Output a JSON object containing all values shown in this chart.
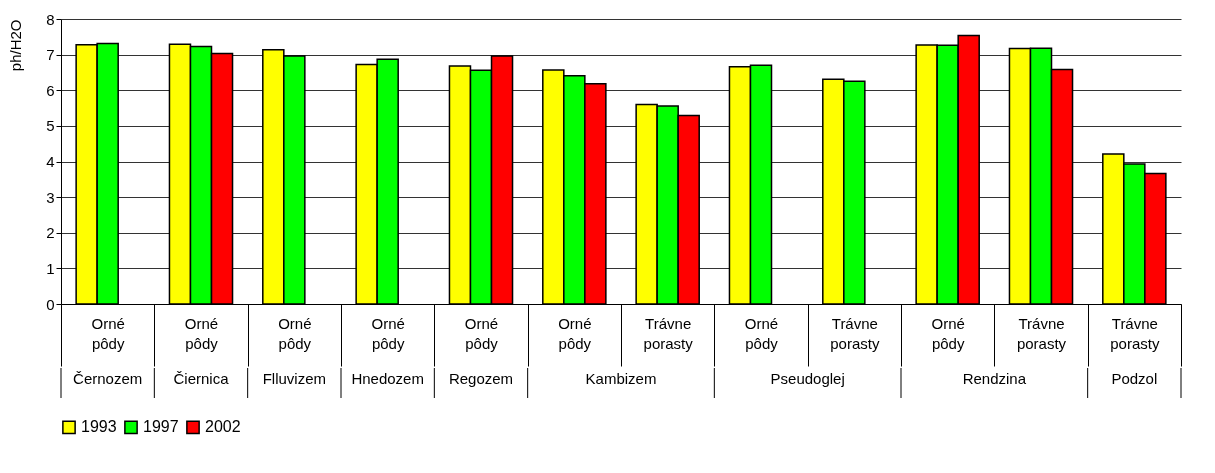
{
  "chart_data": {
    "type": "bar",
    "ylabel": "ph/H2O",
    "categories": [
      "Orné pôdy",
      "Orné pôdy",
      "Orné pôdy",
      "Orné pôdy",
      "Orné pôdy",
      "Orné pôdy",
      "Trávne porasty",
      "Orné pôdy",
      "Trávne porasty",
      "Orné pôdy",
      "Trávne porasty",
      "Trávne porasty"
    ],
    "series": [
      {
        "name": "1993",
        "color": "#ffff00",
        "values": [
          7.28,
          7.29,
          7.14,
          6.72,
          6.68,
          6.57,
          5.6,
          6.66,
          6.31,
          7.27,
          7.17,
          4.21
        ]
      },
      {
        "name": "1997",
        "color": "#00ff00",
        "values": [
          7.31,
          7.23,
          6.96,
          6.87,
          6.56,
          6.41,
          5.56,
          6.7,
          6.25,
          7.26,
          7.18,
          3.93
        ]
      },
      {
        "name": "2002",
        "color": "#ff0000",
        "values": [
          null,
          7.03,
          null,
          null,
          6.96,
          6.18,
          5.29,
          null,
          null,
          7.54,
          6.58,
          3.66
        ]
      }
    ],
    "annotations": [
      "Černozem",
      "Čiernica",
      "Flluvizem",
      "Hnedozem",
      "Regozem",
      "Kambizem",
      "Pseudoglej",
      "Rendzina",
      "Podzol"
    ],
    "ylim": [
      0,
      8
    ],
    "yticks": [
      0,
      1,
      2,
      3,
      4,
      5,
      6,
      7,
      8
    ],
    "grid": "y",
    "legend": "bottom"
  }
}
